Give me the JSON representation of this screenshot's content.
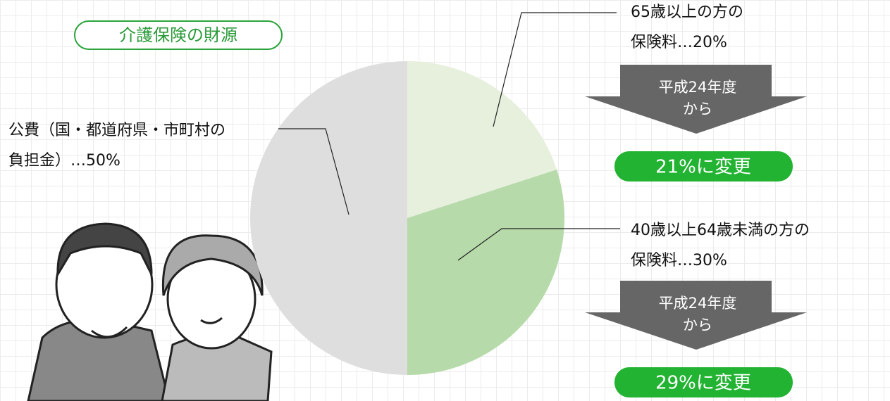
{
  "chart_data": {
    "type": "pie",
    "title": "介護保険の財源",
    "categories": [
      [
        "65歳以上の方の",
        "保険料"
      ],
      [
        "40歳以上64歳未満の方の",
        "保険料"
      ],
      [
        "公費（国・都道府県・市町村の",
        "負担金）"
      ]
    ],
    "values": [
      20,
      30,
      50
    ],
    "value_labels": [
      "…20%",
      "…30%",
      "…50%"
    ],
    "colors": [
      "#e6f0dd",
      "#b6daa9",
      "#dedede"
    ],
    "annotations": [
      {
        "arrow": [
          "平成24年度",
          "から"
        ],
        "result": "21%に変更"
      },
      {
        "arrow": [
          "平成24年度",
          "から"
        ],
        "result": "29%に変更"
      }
    ]
  }
}
